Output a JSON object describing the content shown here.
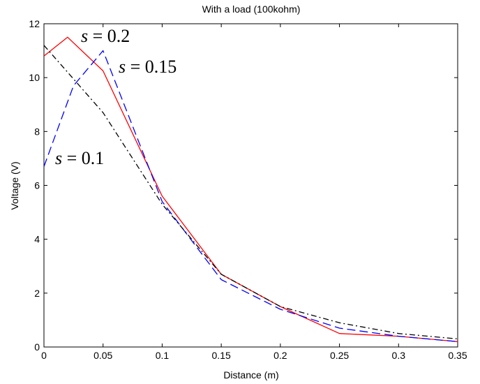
{
  "chart_data": {
    "type": "line",
    "title": "With a load (100kohm)",
    "xlabel": "Distance (m)",
    "ylabel": "Voltage (V)",
    "xlim": [
      0,
      0.35
    ],
    "ylim": [
      0,
      12
    ],
    "xticks": [
      0,
      0.05,
      0.1,
      0.15,
      0.2,
      0.25,
      0.3,
      0.35
    ],
    "xtick_labels": [
      "0",
      "0.05",
      "0.1",
      "0.15",
      "0.2",
      "0.25",
      "0.3",
      "0.35"
    ],
    "yticks": [
      0,
      2,
      4,
      6,
      8,
      10,
      12
    ],
    "ytick_labels": [
      "0",
      "2",
      "4",
      "6",
      "8",
      "10",
      "12"
    ],
    "grid": false,
    "series": [
      {
        "name": "s = 0.2",
        "color": "#ff0000",
        "dash": "solid",
        "x": [
          0,
          0.02,
          0.05,
          0.1,
          0.15,
          0.2,
          0.25,
          0.3,
          0.35
        ],
        "y": [
          10.8,
          11.5,
          10.25,
          5.6,
          2.7,
          1.5,
          0.5,
          0.4,
          0.2
        ]
      },
      {
        "name": "s = 0.15",
        "color": "#0000ff",
        "dash": "dashed",
        "x": [
          0,
          0.025,
          0.05,
          0.1,
          0.15,
          0.2,
          0.25,
          0.3,
          0.35
        ],
        "y": [
          6.7,
          9.7,
          11.0,
          5.4,
          2.5,
          1.4,
          0.7,
          0.4,
          0.2
        ]
      },
      {
        "name": "s = 0.1",
        "color": "#000000",
        "dash": "dashdot",
        "x": [
          0,
          0.05,
          0.1,
          0.15,
          0.2,
          0.25,
          0.3,
          0.35
        ],
        "y": [
          11.2,
          8.7,
          5.3,
          2.7,
          1.5,
          0.9,
          0.5,
          0.3
        ]
      }
    ],
    "annotations": [
      {
        "label": "s = 0.2",
        "sym": "s",
        "rest": " = 0.2"
      },
      {
        "label": "s = 0.15",
        "sym": "s",
        "rest": " = 0.15"
      },
      {
        "label": "s = 0.1",
        "sym": "s",
        "rest": " = 0.1"
      }
    ]
  }
}
